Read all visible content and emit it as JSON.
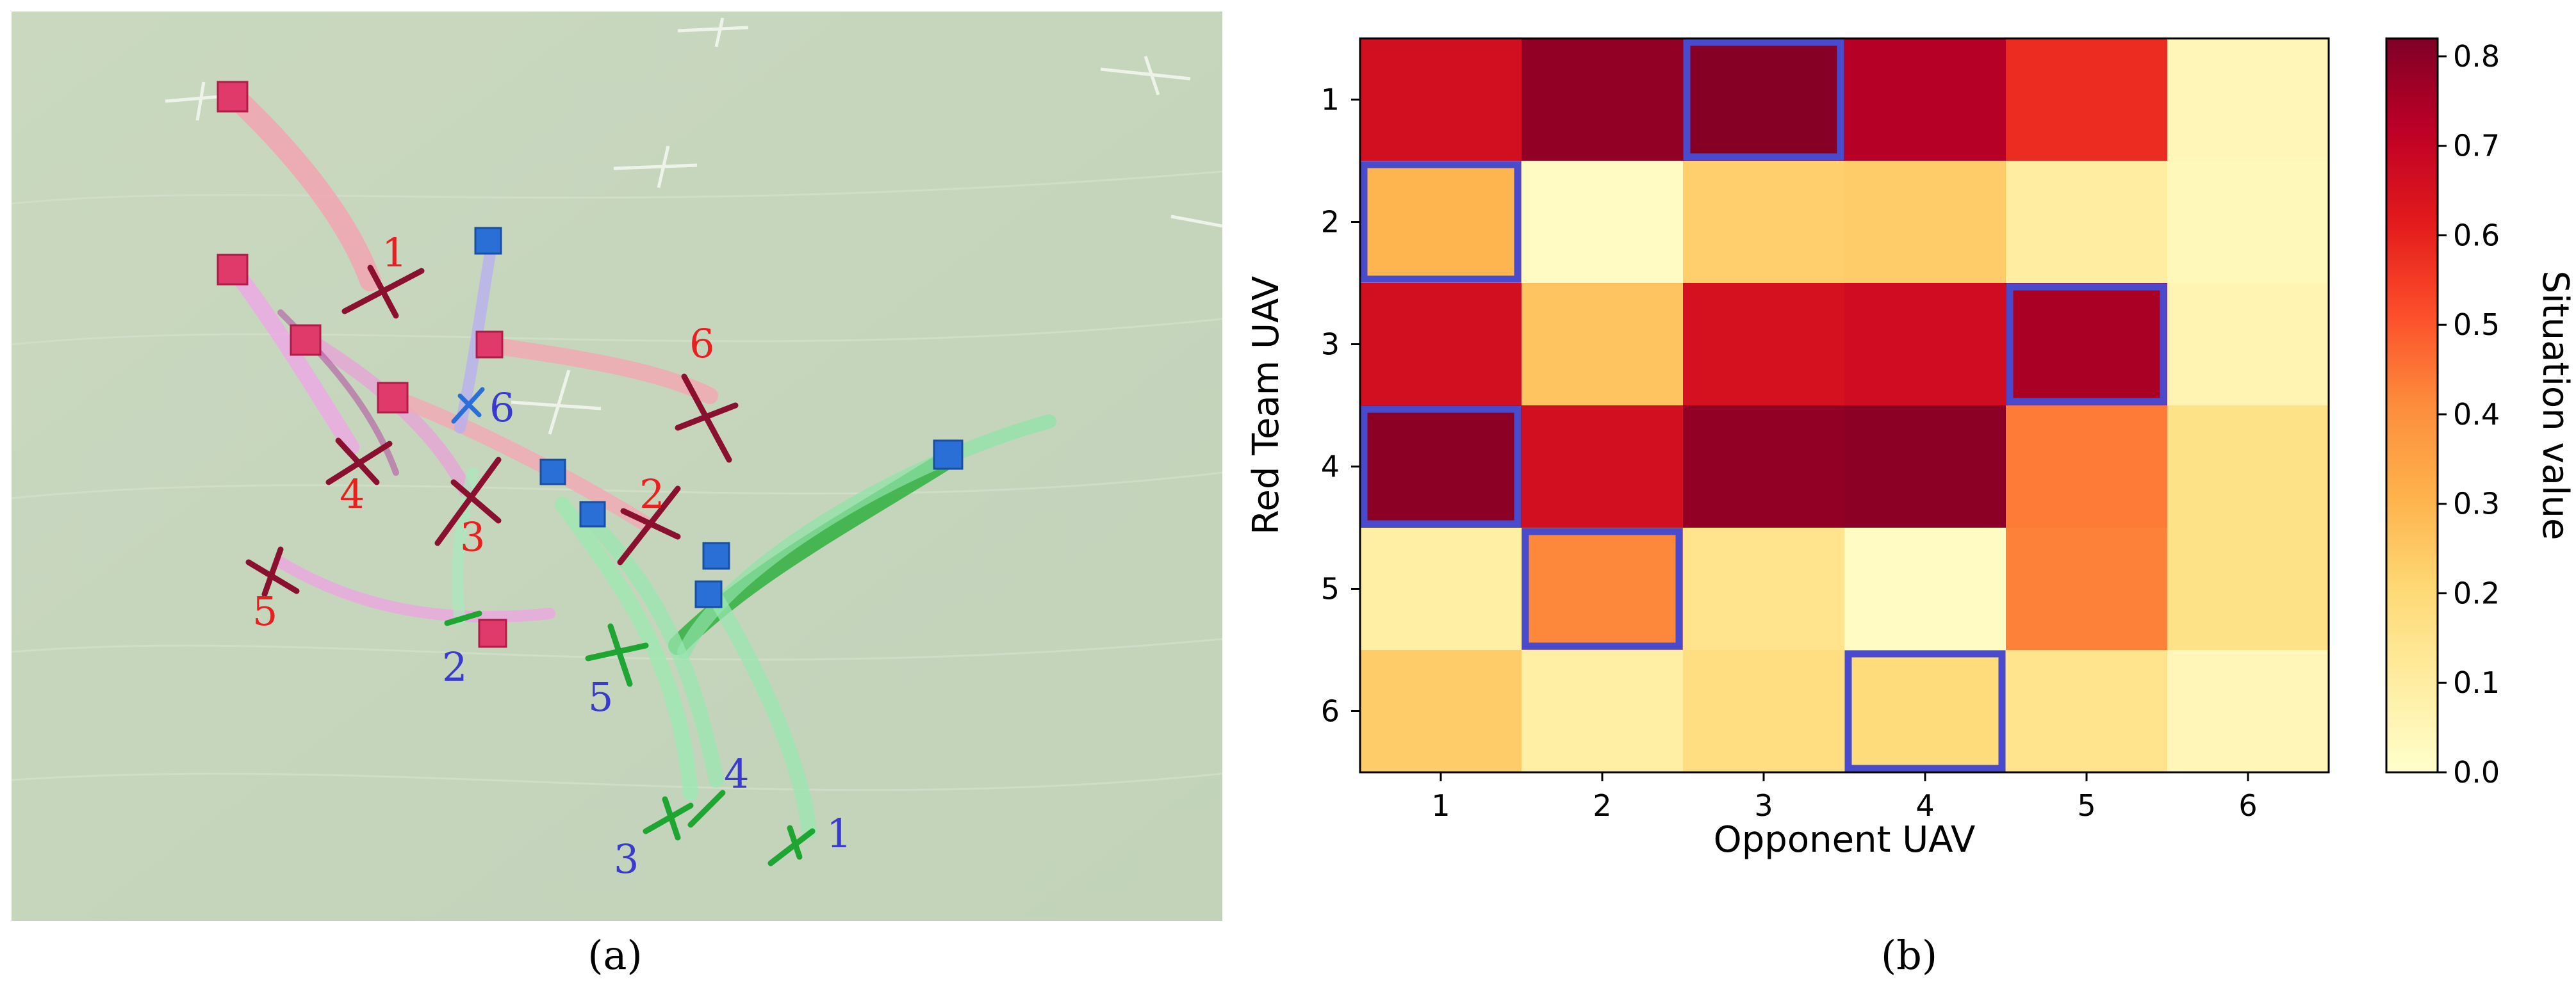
{
  "captions": {
    "a": "(a)",
    "b": "(b)"
  },
  "scene": {
    "colors": {
      "ground": "#c7d6bd",
      "red_team": "#e0203a",
      "blue_team": "#3a3acf",
      "green_uav": "#1fa531",
      "maroon_uav": "#8a1030"
    },
    "red_labels": [
      "1",
      "2",
      "3",
      "4",
      "5",
      "6"
    ],
    "blue_labels": [
      "1",
      "2",
      "3",
      "4",
      "5",
      "6"
    ]
  },
  "chart_data": {
    "type": "heatmap",
    "xlabel": "Opponent UAV",
    "ylabel": "Red Team UAV",
    "x_categories": [
      "1",
      "2",
      "3",
      "4",
      "5",
      "6"
    ],
    "y_categories": [
      "1",
      "2",
      "3",
      "4",
      "5",
      "6"
    ],
    "values": [
      [
        0.66,
        0.79,
        0.81,
        0.73,
        0.58,
        0.05
      ],
      [
        0.3,
        0.02,
        0.23,
        0.24,
        0.1,
        0.04
      ],
      [
        0.66,
        0.26,
        0.65,
        0.67,
        0.75,
        0.06
      ],
      [
        0.8,
        0.66,
        0.79,
        0.8,
        0.44,
        0.16
      ],
      [
        0.09,
        0.42,
        0.15,
        0.02,
        0.43,
        0.16
      ],
      [
        0.24,
        0.09,
        0.18,
        0.19,
        0.15,
        0.05
      ]
    ],
    "highlighted": [
      {
        "row": 1,
        "col": 3
      },
      {
        "row": 2,
        "col": 1
      },
      {
        "row": 3,
        "col": 5
      },
      {
        "row": 4,
        "col": 1
      },
      {
        "row": 5,
        "col": 2
      },
      {
        "row": 6,
        "col": 4
      }
    ],
    "highlight_color": "#4a4acc",
    "colorbar": {
      "label": "Situation value",
      "range": [
        0.0,
        0.82
      ],
      "ticks": [
        "0.0",
        "0.1",
        "0.2",
        "0.3",
        "0.4",
        "0.5",
        "0.6",
        "0.7",
        "0.8"
      ],
      "colormap": "YlOrRd"
    }
  }
}
